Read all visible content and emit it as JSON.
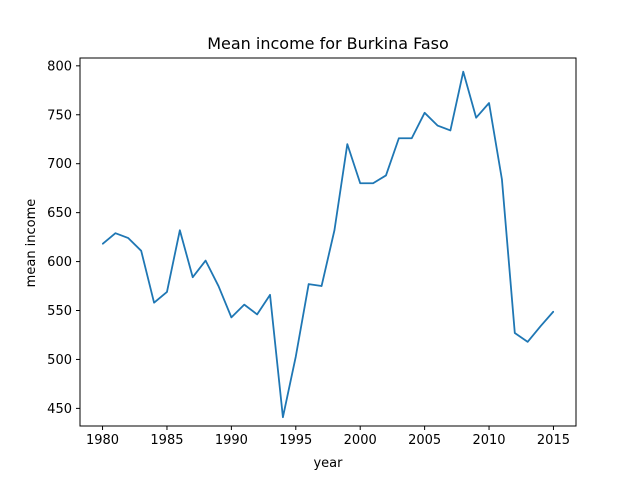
{
  "chart_data": {
    "type": "line",
    "title": "Mean income for Burkina Faso",
    "xlabel": "year",
    "ylabel": "mean income",
    "xlim": [
      1978.25,
      2016.75
    ],
    "ylim": [
      432,
      808
    ],
    "xticks": [
      1980,
      1985,
      1990,
      1995,
      2000,
      2005,
      2010,
      2015
    ],
    "yticks": [
      450,
      500,
      550,
      600,
      650,
      700,
      750,
      800
    ],
    "grid": false,
    "line_color": "#1f77b4",
    "x": [
      1980,
      1981,
      1982,
      1983,
      1984,
      1985,
      1986,
      1987,
      1988,
      1989,
      1990,
      1991,
      1992,
      1993,
      1994,
      1995,
      1996,
      1997,
      1998,
      1999,
      2000,
      2001,
      2002,
      2003,
      2004,
      2005,
      2006,
      2007,
      2008,
      2009,
      2010,
      2011,
      2012,
      2013,
      2014,
      2015
    ],
    "y": [
      618,
      629,
      624,
      611,
      558,
      569,
      632,
      584,
      601,
      575,
      543,
      556,
      546,
      566,
      441,
      503,
      577,
      575,
      632,
      720,
      680,
      680,
      688,
      726,
      726,
      752,
      739,
      734,
      794,
      747,
      762,
      684,
      527,
      518,
      534,
      549
    ]
  }
}
